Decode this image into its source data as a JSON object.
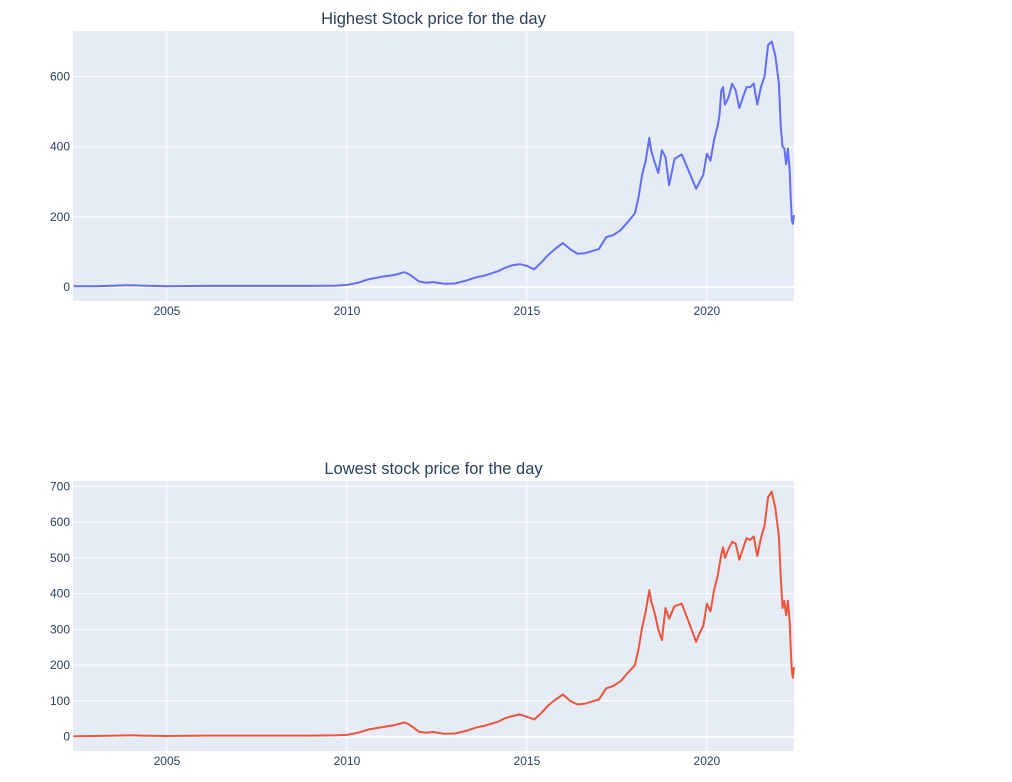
{
  "chart_data": [
    {
      "type": "line",
      "title": "Highest Stock price for the day",
      "xlabel": "",
      "ylabel": "",
      "xlim": [
        2002.39,
        2022.42
      ],
      "ylim": [
        -40,
        730
      ],
      "xticks": [
        2005,
        2010,
        2015,
        2020
      ],
      "xtick_labels": [
        "2005",
        "2010",
        "2015",
        "2020"
      ],
      "yticks": [
        0,
        200,
        400,
        600
      ],
      "ytick_labels": [
        "0",
        "200",
        "400",
        "600"
      ],
      "grid": true,
      "legend": "none",
      "color": "#636efa",
      "x": [
        2002.4,
        2003.0,
        2004.0,
        2004.3,
        2005.0,
        2006.0,
        2007.0,
        2008.0,
        2009.0,
        2009.7,
        2010.0,
        2010.3,
        2010.6,
        2011.0,
        2011.3,
        2011.6,
        2011.75,
        2012.0,
        2012.2,
        2012.4,
        2012.7,
        2013.0,
        2013.3,
        2013.6,
        2013.8,
        2014.0,
        2014.2,
        2014.4,
        2014.6,
        2014.8,
        2015.0,
        2015.2,
        2015.4,
        2015.6,
        2015.8,
        2016.0,
        2016.2,
        2016.4,
        2016.6,
        2016.8,
        2017.0,
        2017.2,
        2017.4,
        2017.6,
        2017.8,
        2018.0,
        2018.1,
        2018.2,
        2018.3,
        2018.4,
        2018.45,
        2018.55,
        2018.65,
        2018.75,
        2018.85,
        2018.95,
        2019.1,
        2019.3,
        2019.5,
        2019.7,
        2019.8,
        2019.9,
        2020.0,
        2020.1,
        2020.2,
        2020.3,
        2020.35,
        2020.4,
        2020.45,
        2020.5,
        2020.6,
        2020.7,
        2020.8,
        2020.9,
        2021.0,
        2021.1,
        2021.2,
        2021.3,
        2021.4,
        2021.5,
        2021.6,
        2021.7,
        2021.8,
        2021.9,
        2022.0,
        2022.05,
        2022.1,
        2022.15,
        2022.2,
        2022.25,
        2022.3,
        2022.33,
        2022.36,
        2022.39,
        2022.42
      ],
      "y": [
        2,
        2,
        5,
        4,
        2,
        3,
        3,
        3,
        3,
        4,
        6,
        12,
        22,
        30,
        34,
        42,
        35,
        16,
        12,
        14,
        9,
        10,
        18,
        28,
        32,
        38,
        45,
        55,
        62,
        65,
        60,
        50,
        70,
        92,
        110,
        125,
        108,
        95,
        96,
        102,
        108,
        142,
        148,
        162,
        185,
        210,
        255,
        320,
        360,
        425,
        390,
        355,
        325,
        390,
        370,
        290,
        365,
        378,
        330,
        280,
        300,
        320,
        380,
        360,
        420,
        460,
        490,
        560,
        570,
        520,
        540,
        580,
        560,
        510,
        540,
        570,
        570,
        580,
        520,
        570,
        600,
        690,
        700,
        660,
        580,
        460,
        400,
        395,
        350,
        395,
        330,
        250,
        190,
        180,
        205
      ]
    },
    {
      "type": "line",
      "title": "Lowest stock price for the day",
      "xlabel": "",
      "ylabel": "",
      "xlim": [
        2002.39,
        2022.42
      ],
      "ylim": [
        -40,
        715
      ],
      "xticks": [
        2005,
        2010,
        2015,
        2020
      ],
      "xtick_labels": [
        "2005",
        "2010",
        "2015",
        "2020"
      ],
      "yticks": [
        0,
        100,
        200,
        300,
        400,
        500,
        600,
        700
      ],
      "ytick_labels": [
        "0",
        "100",
        "200",
        "300",
        "400",
        "500",
        "600",
        "700"
      ],
      "grid": true,
      "legend": "none",
      "color": "#ef553b",
      "x": [
        2002.4,
        2003.0,
        2004.0,
        2004.3,
        2005.0,
        2006.0,
        2007.0,
        2008.0,
        2009.0,
        2009.7,
        2010.0,
        2010.3,
        2010.6,
        2011.0,
        2011.3,
        2011.6,
        2011.75,
        2012.0,
        2012.2,
        2012.4,
        2012.7,
        2013.0,
        2013.3,
        2013.6,
        2013.8,
        2014.0,
        2014.2,
        2014.4,
        2014.6,
        2014.8,
        2015.0,
        2015.2,
        2015.4,
        2015.6,
        2015.8,
        2016.0,
        2016.2,
        2016.4,
        2016.6,
        2016.8,
        2017.0,
        2017.2,
        2017.4,
        2017.6,
        2017.8,
        2018.0,
        2018.1,
        2018.2,
        2018.3,
        2018.4,
        2018.45,
        2018.55,
        2018.65,
        2018.75,
        2018.85,
        2018.95,
        2019.1,
        2019.3,
        2019.5,
        2019.7,
        2019.8,
        2019.9,
        2020.0,
        2020.1,
        2020.2,
        2020.3,
        2020.35,
        2020.4,
        2020.45,
        2020.5,
        2020.6,
        2020.7,
        2020.8,
        2020.9,
        2021.0,
        2021.1,
        2021.2,
        2021.3,
        2021.4,
        2021.5,
        2021.6,
        2021.7,
        2021.8,
        2021.9,
        2022.0,
        2022.05,
        2022.1,
        2022.15,
        2022.2,
        2022.25,
        2022.3,
        2022.33,
        2022.36,
        2022.39,
        2022.42
      ],
      "y": [
        1,
        2,
        4,
        3,
        2,
        3,
        3,
        3,
        3,
        4,
        5,
        11,
        20,
        27,
        32,
        40,
        33,
        14,
        11,
        13,
        8,
        9,
        16,
        26,
        30,
        36,
        42,
        52,
        58,
        62,
        56,
        48,
        66,
        88,
        104,
        118,
        100,
        90,
        92,
        98,
        104,
        135,
        142,
        155,
        178,
        200,
        245,
        305,
        350,
        410,
        380,
        345,
        300,
        270,
        360,
        330,
        365,
        372,
        320,
        265,
        290,
        310,
        372,
        350,
        410,
        450,
        480,
        510,
        530,
        500,
        525,
        545,
        540,
        495,
        525,
        555,
        550,
        560,
        505,
        555,
        590,
        670,
        685,
        640,
        560,
        450,
        360,
        380,
        340,
        380,
        320,
        240,
        185,
        165,
        195
      ]
    }
  ]
}
